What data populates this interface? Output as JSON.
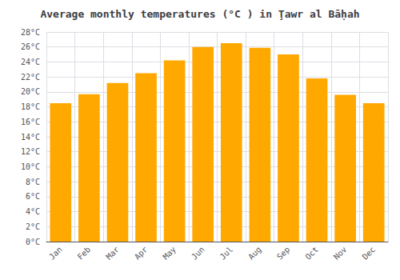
{
  "chart_data": {
    "type": "bar",
    "title": "Average monthly temperatures (°C ) in Ţawr al Bāḥah",
    "categories": [
      "Jan",
      "Feb",
      "Mar",
      "Apr",
      "May",
      "Jun",
      "Jul",
      "Aug",
      "Sep",
      "Oct",
      "Nov",
      "Dec"
    ],
    "values": [
      18.5,
      19.7,
      21.2,
      22.5,
      24.2,
      26.0,
      26.5,
      25.9,
      25.0,
      21.8,
      19.6,
      18.5
    ],
    "color": "#FFA800",
    "ylim": [
      0,
      28
    ],
    "yticks": [
      {
        "value": 0,
        "label": "0°C"
      },
      {
        "value": 2,
        "label": "2°C"
      },
      {
        "value": 4,
        "label": "4°C"
      },
      {
        "value": 6,
        "label": "6°C"
      },
      {
        "value": 8,
        "label": "8°C"
      },
      {
        "value": 10,
        "label": "10°C"
      },
      {
        "value": 12,
        "label": "12°C"
      },
      {
        "value": 14,
        "label": "14°C"
      },
      {
        "value": 16,
        "label": "16°C"
      },
      {
        "value": 18,
        "label": "18°C"
      },
      {
        "value": 20,
        "label": "20°C"
      },
      {
        "value": 22,
        "label": "22°C"
      },
      {
        "value": 24,
        "label": "24°C"
      },
      {
        "value": 26,
        "label": "26°C"
      },
      {
        "value": 28,
        "label": "28°C"
      }
    ],
    "grid": true
  }
}
